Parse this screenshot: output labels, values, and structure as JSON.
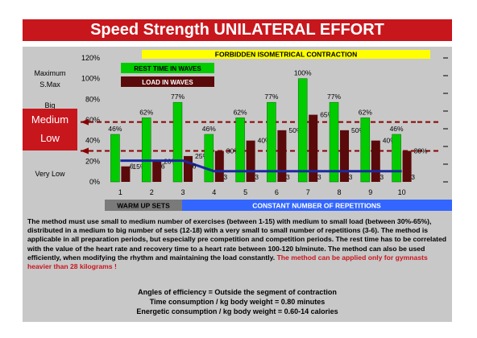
{
  "title": "Speed Strength UNILATERAL EFFORT",
  "levels": {
    "maximum": "Maximum",
    "smax": "S.Max",
    "big": "Big",
    "medium": "Medium",
    "low": "Low",
    "very_low": "Very Low"
  },
  "banner": "FORBIDDEN ISOMETRICAL CONTRACTION",
  "warm_up": "WARM UP SETS",
  "constant": "CONSTANT NUMBER OF REPETITIONS",
  "colors": {
    "title_red": "#c8161d",
    "rest_green": "#00cc00",
    "load_darkred": "#5a0a0a",
    "banner_yellow": "#ffff00",
    "warmup_gray": "#7a7a7a",
    "constant_blue": "#3366ff",
    "line_blue": "#1a2aa0"
  },
  "chart_data": {
    "type": "bar",
    "categories": [
      "1",
      "2",
      "3",
      "4",
      "5",
      "6",
      "7",
      "8",
      "9",
      "10"
    ],
    "ylim_left": [
      0,
      120
    ],
    "ylim_right": [
      0,
      35
    ],
    "left_ticks": [
      "0%",
      "20%",
      "40%",
      "60%",
      "80%",
      "100%",
      "120%"
    ],
    "right_ticks": [
      "0",
      "5",
      "10",
      "15",
      "20",
      "25",
      "30",
      "35"
    ],
    "series": [
      {
        "name": "REST TIME IN WAVES",
        "axis": "left",
        "values": [
          46,
          62,
          77,
          46,
          62,
          77,
          100,
          77,
          62,
          46
        ],
        "labels": [
          "46%",
          "62%",
          "77%",
          "46%",
          "62%",
          "77%",
          "100%",
          "77%",
          "62%",
          "46%"
        ]
      },
      {
        "name": "LOAD IN WAVES",
        "axis": "left",
        "values": [
          15,
          20,
          25,
          30,
          40,
          50,
          65,
          50,
          40,
          30
        ],
        "labels": [
          "15%",
          "20%",
          "25%",
          "30%",
          "40%",
          "50%",
          "65%",
          "50%",
          "40%",
          "30%"
        ]
      },
      {
        "axis": "right",
        "values": [
          6,
          6,
          6,
          3,
          3,
          3,
          3,
          3,
          3,
          3
        ],
        "labels": [
          "6",
          "6",
          "6",
          "3",
          "3",
          "3",
          "3",
          "3",
          "3",
          "3"
        ]
      }
    ],
    "reference_lines_pct": [
      58,
      30
    ]
  },
  "body": {
    "p1": "The method must use small to medium number of exercises (between 1-15) with medium to small load (between 30%-65%), distributed in a medium to big number of sets (12-18) with a very small to small number of repetitions (3-6). The method is applicable in all preparation periods, but especially pre competition and competition periods. The rest time has to be correlated with the value of the heart rate and recovery time to a heart rate between 100-120 b/minute. The method can also be used efficiently, when modifying the rhythm and maintaining the load constantly.",
    "p2": "The method can be applied only for gymnasts heavier than 28 kilograms !",
    "l1": "Angles of efficiency =  Outside the segment of contraction",
    "l2": "Time consumption /  kg body weight =  0.80 minutes",
    "l3": "Energetic consumption / kg body weight =  0.60-14 calories"
  }
}
